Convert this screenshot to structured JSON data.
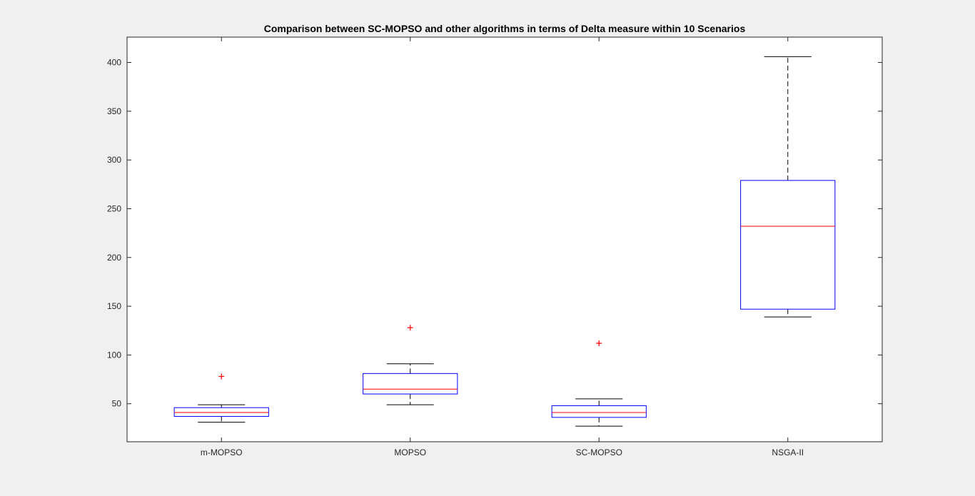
{
  "chart_data": {
    "type": "box",
    "title": "Comparison between SC-MOPSO and other algorithms in terms of Delta measure within 10 Scenarios",
    "xlabel": "",
    "ylabel": "",
    "categories": [
      "m-MOPSO",
      "MOPSO",
      "SC-MOPSO",
      "NSGA-II"
    ],
    "yticks": [
      "50",
      "100",
      "150",
      "200",
      "250",
      "300",
      "350",
      "400"
    ],
    "ylim": [
      11,
      426
    ],
    "grid": false,
    "boxes": [
      {
        "label": "m-MOPSO",
        "whisker_low": 31,
        "q1": 37,
        "median": 41,
        "q3": 46,
        "whisker_high": 49,
        "outliers": [
          78
        ]
      },
      {
        "label": "MOPSO",
        "whisker_low": 49,
        "q1": 60,
        "median": 65,
        "q3": 81,
        "whisker_high": 91,
        "outliers": [
          128
        ]
      },
      {
        "label": "SC-MOPSO",
        "whisker_low": 27,
        "q1": 36,
        "median": 41,
        "q3": 48,
        "whisker_high": 55,
        "outliers": [
          112
        ]
      },
      {
        "label": "NSGA-II",
        "whisker_low": 139,
        "q1": 147,
        "median": 232,
        "q3": 279,
        "whisker_high": 406,
        "outliers": []
      }
    ],
    "colors": {
      "box": "#0000ff",
      "median": "#ff0000",
      "whisker": "#000000",
      "outlier": "#ff0000",
      "axes": "#262626"
    }
  }
}
